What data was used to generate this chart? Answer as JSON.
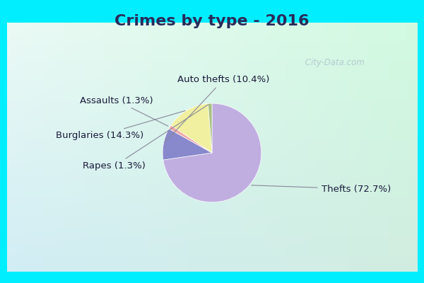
{
  "title": "Crimes by type - 2016",
  "slices": [
    {
      "label": "Thefts (72.7%)",
      "value": 72.7,
      "color": "#c0aee0"
    },
    {
      "label": "Auto thefts (10.4%)",
      "value": 10.4,
      "color": "#8888cc"
    },
    {
      "label": "Assaults (1.3%)",
      "value": 1.3,
      "color": "#f0a8a8"
    },
    {
      "label": "Burglaries (14.3%)",
      "value": 14.3,
      "color": "#f0f0a0"
    },
    {
      "label": "Rapes (1.3%)",
      "value": 1.3,
      "color": "#a8c080"
    }
  ],
  "border_color": "#00eeff",
  "bg_grad_top": "#c8ede0",
  "bg_grad_bottom": "#d8f0e0",
  "title_fontsize": 16,
  "label_fontsize": 9.5,
  "startangle": 90,
  "watermark": " City-Data.com",
  "border_width": 10
}
